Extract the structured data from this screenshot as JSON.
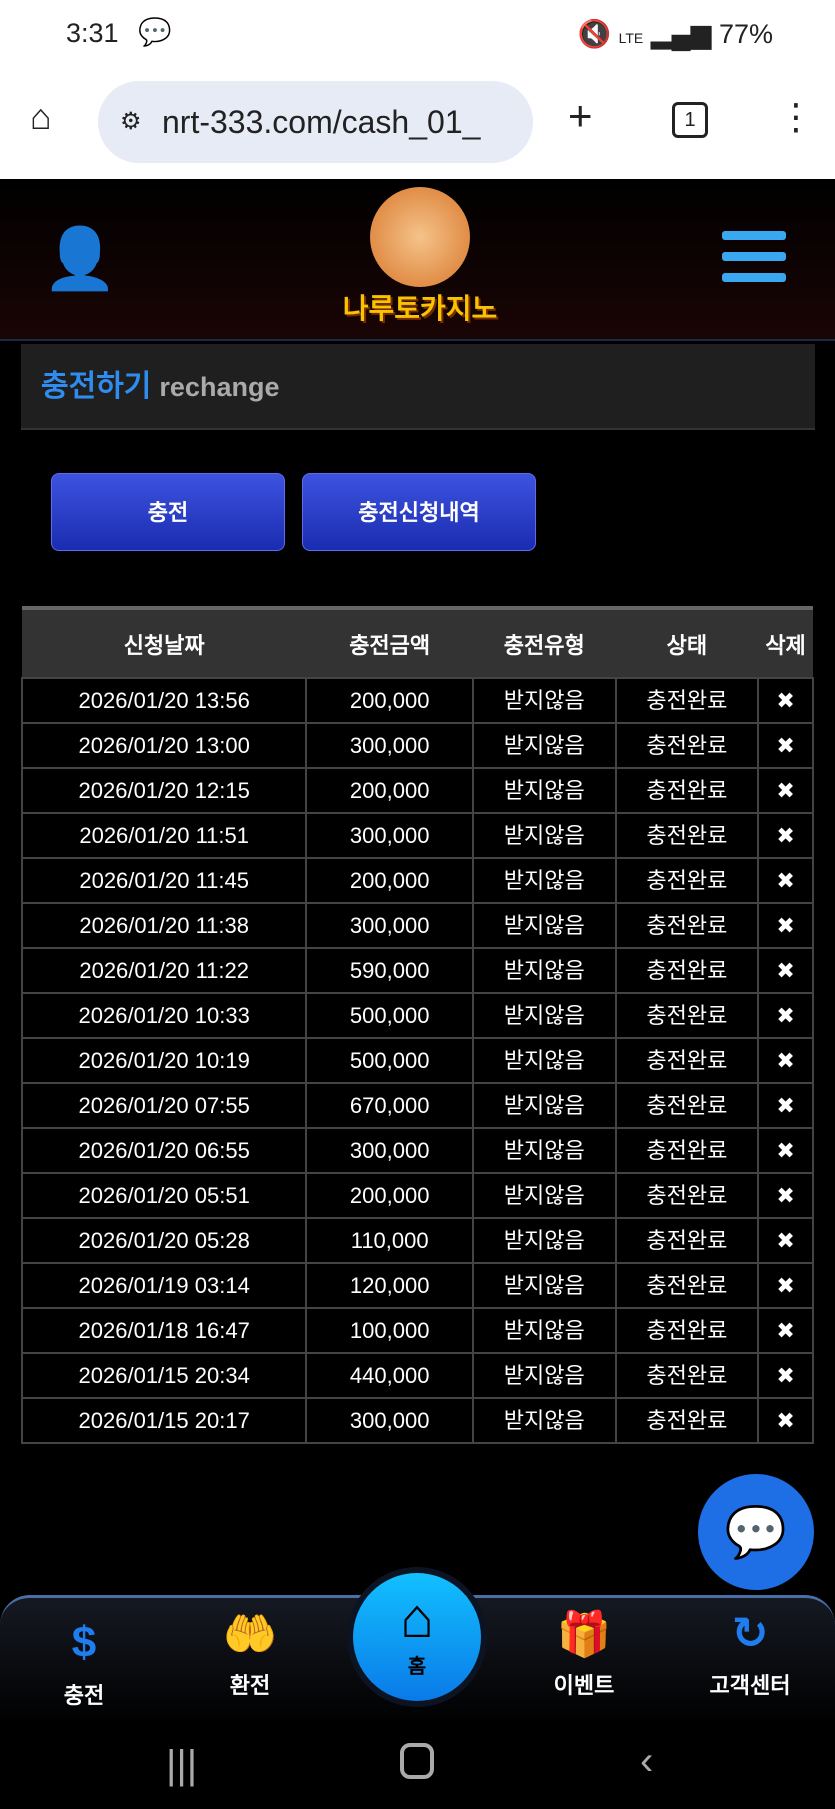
{
  "status_bar": {
    "time": "3:31",
    "battery": "77%",
    "network": "LTE"
  },
  "browser": {
    "url": "nrt-333.com/cash_01_",
    "tab_count": "1"
  },
  "header": {
    "logo_text": "나루토카지노"
  },
  "section": {
    "title_ko": "충전하기",
    "title_en": "rechange"
  },
  "buttons": {
    "charge": "충전",
    "history": "충전신청내역"
  },
  "table": {
    "headers": [
      "신청날짜",
      "충전금액",
      "충전유형",
      "상태",
      "삭제"
    ],
    "rows": [
      [
        "2026/01/20 13:56",
        "200,000",
        "받지않음",
        "충전완료"
      ],
      [
        "2026/01/20 13:00",
        "300,000",
        "받지않음",
        "충전완료"
      ],
      [
        "2026/01/20 12:15",
        "200,000",
        "받지않음",
        "충전완료"
      ],
      [
        "2026/01/20 11:51",
        "300,000",
        "받지않음",
        "충전완료"
      ],
      [
        "2026/01/20 11:45",
        "200,000",
        "받지않음",
        "충전완료"
      ],
      [
        "2026/01/20 11:38",
        "300,000",
        "받지않음",
        "충전완료"
      ],
      [
        "2026/01/20 11:22",
        "590,000",
        "받지않음",
        "충전완료"
      ],
      [
        "2026/01/20 10:33",
        "500,000",
        "받지않음",
        "충전완료"
      ],
      [
        "2026/01/20 10:19",
        "500,000",
        "받지않음",
        "충전완료"
      ],
      [
        "2026/01/20 07:55",
        "670,000",
        "받지않음",
        "충전완료"
      ],
      [
        "2026/01/20 06:55",
        "300,000",
        "받지않음",
        "충전완료"
      ],
      [
        "2026/01/20 05:51",
        "200,000",
        "받지않음",
        "충전완료"
      ],
      [
        "2026/01/20 05:28",
        "110,000",
        "받지않음",
        "충전완료"
      ],
      [
        "2026/01/19 03:14",
        "120,000",
        "받지않음",
        "충전완료"
      ],
      [
        "2026/01/18 16:47",
        "100,000",
        "받지않음",
        "충전완료"
      ],
      [
        "2026/01/15 20:34",
        "440,000",
        "받지않음",
        "충전완료"
      ],
      [
        "2026/01/15 20:17",
        "300,000",
        "받지않음",
        "충전완료"
      ]
    ],
    "delete_symbol": "✖"
  },
  "bottom_nav": {
    "charge": "충전",
    "exchange": "환전",
    "home": "홈",
    "event": "이벤트",
    "support": "고객센터"
  },
  "colors": {
    "accent": "#1e7ef0",
    "button": "#2a3fd0"
  }
}
